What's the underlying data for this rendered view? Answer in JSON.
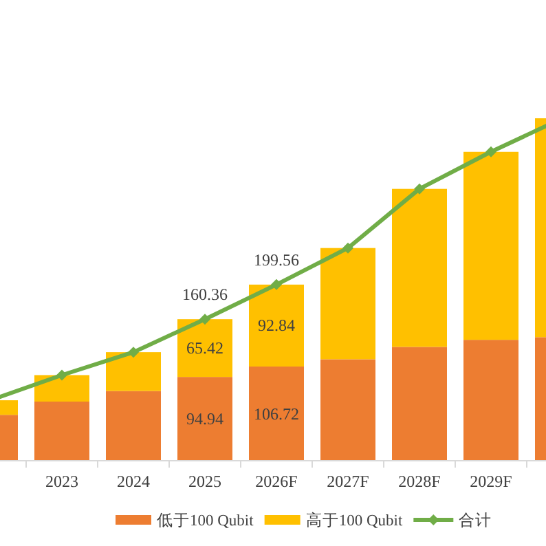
{
  "chart_data": {
    "type": "bar",
    "stacked": true,
    "categories": [
      null,
      "2023",
      "2024",
      "2025",
      "2026F",
      "2027F",
      "2028F",
      "2029F",
      null
    ],
    "series": [
      {
        "name": "低于100 Qubit",
        "color": "#ed7d31",
        "values": [
          52,
          67,
          79,
          94.94,
          106.72,
          115,
          129,
          137,
          140
        ],
        "value_labels": [
          null,
          null,
          null,
          "94.94",
          "106.72",
          null,
          null,
          null,
          null
        ]
      },
      {
        "name": "高于100 Qubit",
        "color": "#ffc000",
        "values": [
          16.5,
          30,
          44,
          65.42,
          92.84,
          126,
          179,
          213,
          248
        ],
        "value_labels": [
          null,
          null,
          null,
          "65.42",
          "92.84",
          null,
          null,
          null,
          null
        ]
      },
      {
        "name": "合计",
        "type": "line",
        "color": "#70ad47",
        "marker": "diamond",
        "values": [
          68.5,
          97,
          123,
          160.36,
          199.56,
          241,
          308,
          350,
          388
        ],
        "value_labels": [
          null,
          null,
          null,
          "160.36",
          "199.56",
          null,
          null,
          null,
          null
        ]
      }
    ],
    "tick_labels": "x",
    "legend": "bottom"
  }
}
